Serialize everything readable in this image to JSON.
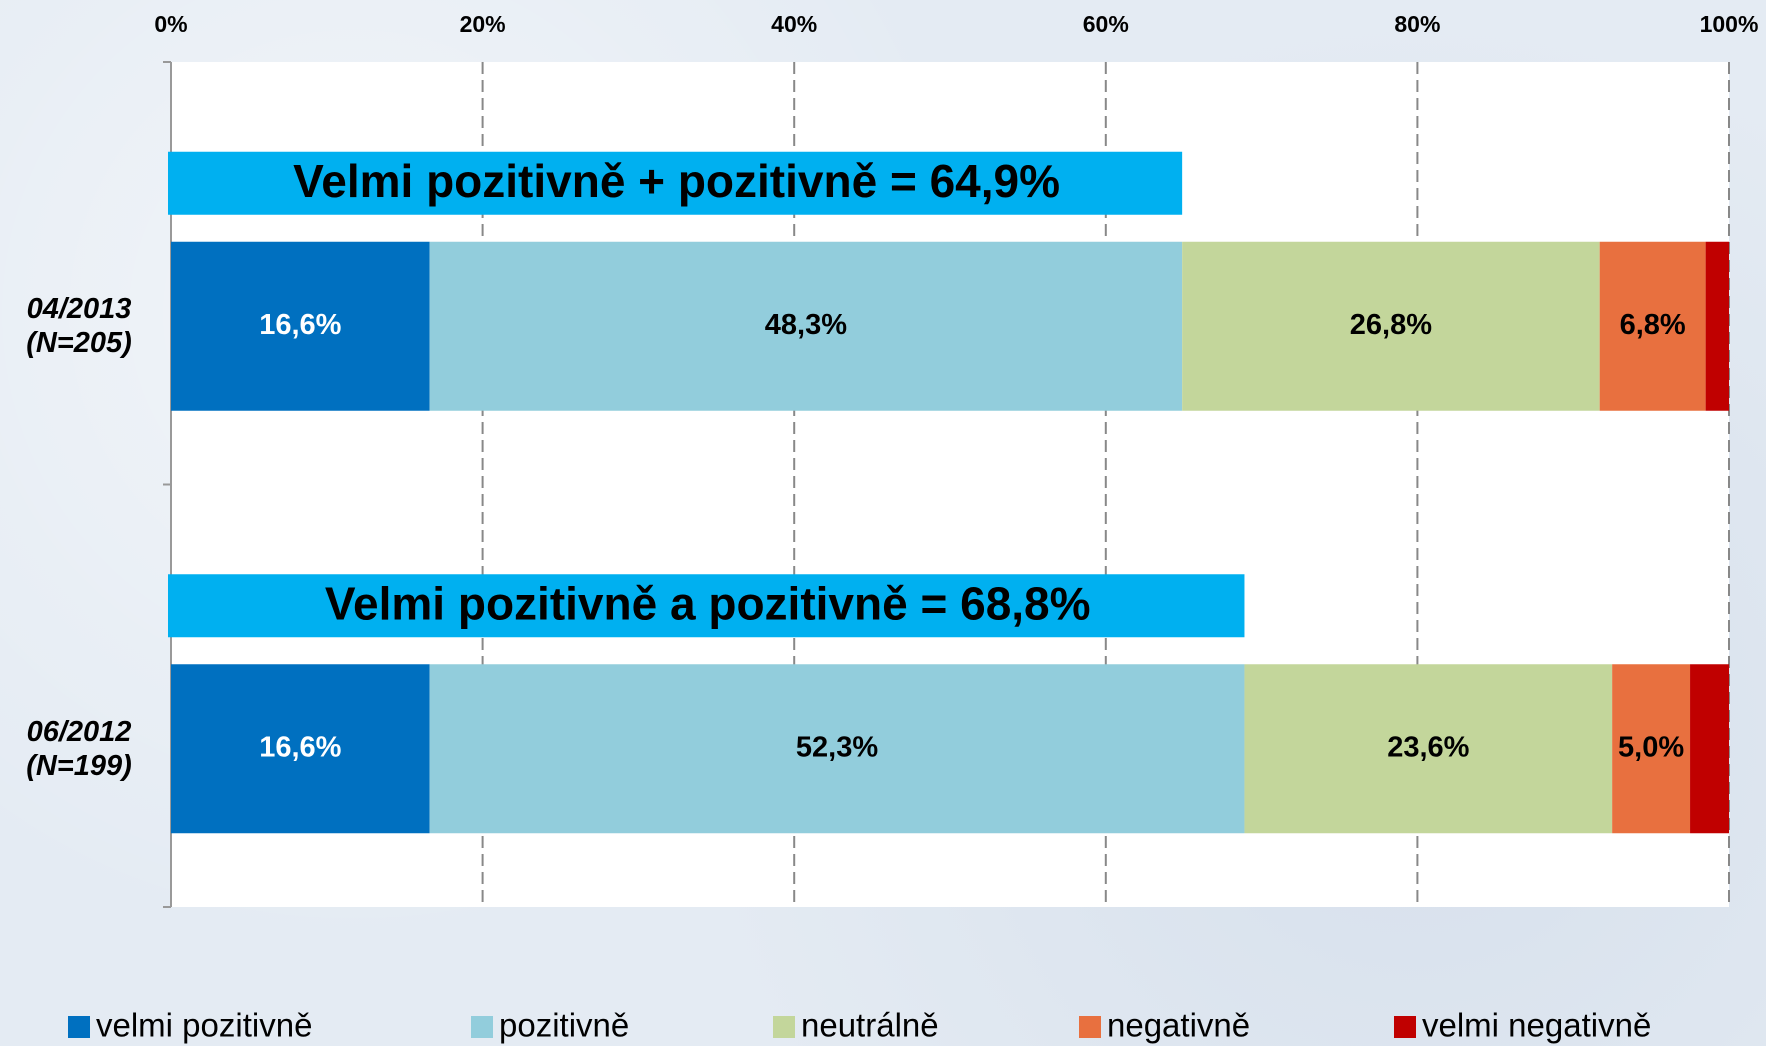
{
  "chart_data": {
    "type": "stacked_barh",
    "categories": [
      "04/2013\n(N=205)",
      "06/2012\n(N=199)"
    ],
    "annotations": [
      "Velmi pozitivně + pozitivně = 64,9%",
      "Velmi pozitivně a pozitivně = 68,8%"
    ],
    "series": [
      {
        "name": "velmi pozitivně",
        "color": "#0070c0",
        "label_color": "#ffffff",
        "values": [
          16.6,
          16.6
        ],
        "value_labels": [
          "16,6%",
          "16,6%"
        ]
      },
      {
        "name": "pozitivně",
        "color": "#92cddc",
        "label_color": "#000000",
        "values": [
          48.3,
          52.3
        ],
        "value_labels": [
          "48,3%",
          "52,3%"
        ]
      },
      {
        "name": "neutrálně",
        "color": "#c3d69b",
        "label_color": "#000000",
        "values": [
          26.8,
          23.6
        ],
        "value_labels": [
          "26,8%",
          "23,6%"
        ]
      },
      {
        "name": "negativně",
        "color": "#e8703f",
        "label_color": "#000000",
        "values": [
          6.8,
          5.0
        ],
        "value_labels": [
          "6,8%",
          "5,0%"
        ]
      },
      {
        "name": "velmi negativně",
        "color": "#c00000",
        "label_color": "#000000",
        "values": [
          1.5,
          2.5
        ]
      }
    ],
    "xlim": [
      0,
      100
    ],
    "xticks": [
      {
        "value": 0,
        "label": "0%"
      },
      {
        "value": 20,
        "label": "20%"
      },
      {
        "value": 40,
        "label": "40%"
      },
      {
        "value": 60,
        "label": "60%"
      },
      {
        "value": 80,
        "label": "80%"
      },
      {
        "value": 100,
        "label": "100%"
      }
    ],
    "grid": true,
    "legend": "bottom"
  }
}
